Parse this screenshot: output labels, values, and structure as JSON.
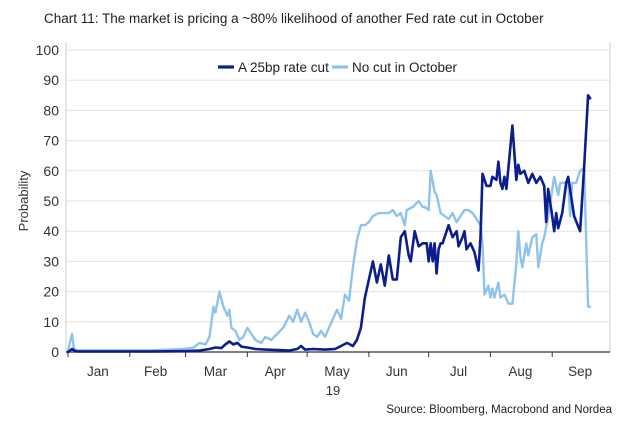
{
  "chart_data": {
    "type": "line",
    "title": "Chart 11: The market is pricing a ~80% likelihood of another Fed rate cut in October",
    "xlabel": "",
    "ylabel": "Probability",
    "source": "Source: Bloomberg, Macrobond and Nordea",
    "year_label": "19",
    "ylim": [
      0,
      100
    ],
    "yticks": [
      0,
      10,
      20,
      30,
      40,
      50,
      60,
      70,
      80,
      90,
      100
    ],
    "x_range": [
      "2018-12-31",
      "2019-09-30"
    ],
    "month_labels": [
      {
        "label": "Jan",
        "date": "2019-01-16"
      },
      {
        "label": "Feb",
        "date": "2019-02-14"
      },
      {
        "label": "Mar",
        "date": "2019-03-16"
      },
      {
        "label": "Apr",
        "date": "2019-04-15"
      },
      {
        "label": "May",
        "date": "2019-05-16"
      },
      {
        "label": "Jun",
        "date": "2019-06-15"
      },
      {
        "label": "Jul",
        "date": "2019-07-16"
      },
      {
        "label": "Aug",
        "date": "2019-08-16"
      },
      {
        "label": "Sep",
        "date": "2019-09-15"
      }
    ],
    "month_ticks": [
      "2019-01-01",
      "2019-02-01",
      "2019-03-01",
      "2019-04-01",
      "2019-05-01",
      "2019-06-01",
      "2019-07-01",
      "2019-08-01",
      "2019-09-01"
    ],
    "legend_position": "top-center",
    "grid": true,
    "series": [
      {
        "name": "A 25bp rate cut",
        "color": "#0b1e8c",
        "points": [
          [
            "2019-01-01",
            0
          ],
          [
            "2019-01-03",
            1
          ],
          [
            "2019-01-05",
            0.2
          ],
          [
            "2019-01-15",
            0.2
          ],
          [
            "2019-02-01",
            0.2
          ],
          [
            "2019-02-15",
            0.2
          ],
          [
            "2019-03-01",
            0.3
          ],
          [
            "2019-03-08",
            0.5
          ],
          [
            "2019-03-13",
            1
          ],
          [
            "2019-03-16",
            1.5
          ],
          [
            "2019-03-19",
            1.3
          ],
          [
            "2019-03-21",
            2.5
          ],
          [
            "2019-03-23",
            3.5
          ],
          [
            "2019-03-25",
            2.5
          ],
          [
            "2019-03-27",
            3
          ],
          [
            "2019-03-29",
            1.8
          ],
          [
            "2019-04-01",
            1.5
          ],
          [
            "2019-04-05",
            1
          ],
          [
            "2019-04-10",
            0.8
          ],
          [
            "2019-04-18",
            0.6
          ],
          [
            "2019-04-22",
            0.5
          ],
          [
            "2019-04-26",
            1
          ],
          [
            "2019-04-28",
            2
          ],
          [
            "2019-04-30",
            0.8
          ],
          [
            "2019-05-04",
            1
          ],
          [
            "2019-05-10",
            0.8
          ],
          [
            "2019-05-15",
            1
          ],
          [
            "2019-05-18",
            2
          ],
          [
            "2019-05-21",
            3
          ],
          [
            "2019-05-24",
            2
          ],
          [
            "2019-05-26",
            4
          ],
          [
            "2019-05-28",
            8
          ],
          [
            "2019-05-30",
            18
          ],
          [
            "2019-06-01",
            24
          ],
          [
            "2019-06-03",
            30
          ],
          [
            "2019-06-05",
            23
          ],
          [
            "2019-06-07",
            29
          ],
          [
            "2019-06-09",
            22
          ],
          [
            "2019-06-11",
            32
          ],
          [
            "2019-06-13",
            24
          ],
          [
            "2019-06-15",
            24
          ],
          [
            "2019-06-17",
            38
          ],
          [
            "2019-06-19",
            40
          ],
          [
            "2019-06-21",
            32
          ],
          [
            "2019-06-22",
            30
          ],
          [
            "2019-06-24",
            40
          ],
          [
            "2019-06-26",
            35
          ],
          [
            "2019-06-28",
            36
          ],
          [
            "2019-06-30",
            36
          ],
          [
            "2019-07-01",
            30
          ],
          [
            "2019-07-02",
            36
          ],
          [
            "2019-07-03",
            30
          ],
          [
            "2019-07-04",
            36
          ],
          [
            "2019-07-05",
            26
          ],
          [
            "2019-07-06",
            34
          ],
          [
            "2019-07-07",
            36
          ],
          [
            "2019-07-08",
            36
          ],
          [
            "2019-07-10",
            40
          ],
          [
            "2019-07-11",
            42
          ],
          [
            "2019-07-13",
            38
          ],
          [
            "2019-07-15",
            40
          ],
          [
            "2019-07-16",
            35
          ],
          [
            "2019-07-18",
            38
          ],
          [
            "2019-07-19",
            40
          ],
          [
            "2019-07-20",
            34
          ],
          [
            "2019-07-22",
            36
          ],
          [
            "2019-07-24",
            33
          ],
          [
            "2019-07-25",
            30
          ],
          [
            "2019-07-26",
            27
          ],
          [
            "2019-07-27",
            38
          ],
          [
            "2019-07-28",
            59
          ],
          [
            "2019-07-30",
            55
          ],
          [
            "2019-08-01",
            55
          ],
          [
            "2019-08-02",
            58
          ],
          [
            "2019-08-04",
            57
          ],
          [
            "2019-08-05",
            63
          ],
          [
            "2019-08-06",
            56
          ],
          [
            "2019-08-07",
            54
          ],
          [
            "2019-08-08",
            58
          ],
          [
            "2019-08-09",
            54
          ],
          [
            "2019-08-12",
            75
          ],
          [
            "2019-08-14",
            57
          ],
          [
            "2019-08-15",
            62
          ],
          [
            "2019-08-16",
            59
          ],
          [
            "2019-08-18",
            60
          ],
          [
            "2019-08-20",
            56
          ],
          [
            "2019-08-22",
            59
          ],
          [
            "2019-08-24",
            56
          ],
          [
            "2019-08-26",
            58
          ],
          [
            "2019-08-28",
            55
          ],
          [
            "2019-08-29",
            43
          ],
          [
            "2019-08-30",
            54
          ],
          [
            "2019-09-01",
            45
          ],
          [
            "2019-09-02",
            40
          ],
          [
            "2019-09-03",
            46
          ],
          [
            "2019-09-04",
            41
          ],
          [
            "2019-09-06",
            46
          ],
          [
            "2019-09-08",
            56
          ],
          [
            "2019-09-09",
            58
          ],
          [
            "2019-09-12",
            45
          ],
          [
            "2019-09-15",
            40
          ],
          [
            "2019-09-17",
            61
          ],
          [
            "2019-09-19",
            85
          ],
          [
            "2019-09-20",
            84
          ]
        ]
      },
      {
        "name": "No cut in October",
        "color": "#8fc3ee",
        "points": [
          [
            "2019-01-01",
            0.5
          ],
          [
            "2019-01-03",
            6
          ],
          [
            "2019-01-04",
            1
          ],
          [
            "2019-01-06",
            0.5
          ],
          [
            "2019-01-20",
            0.5
          ],
          [
            "2019-02-10",
            0.5
          ],
          [
            "2019-02-28",
            1
          ],
          [
            "2019-03-05",
            1.5
          ],
          [
            "2019-03-08",
            3
          ],
          [
            "2019-03-11",
            2.5
          ],
          [
            "2019-03-13",
            5
          ],
          [
            "2019-03-15",
            15
          ],
          [
            "2019-03-16",
            13
          ],
          [
            "2019-03-18",
            20
          ],
          [
            "2019-03-20",
            15
          ],
          [
            "2019-03-22",
            12
          ],
          [
            "2019-03-23",
            14
          ],
          [
            "2019-03-24",
            8
          ],
          [
            "2019-03-26",
            7
          ],
          [
            "2019-03-28",
            4
          ],
          [
            "2019-03-30",
            5
          ],
          [
            "2019-04-01",
            8
          ],
          [
            "2019-04-03",
            6
          ],
          [
            "2019-04-05",
            4
          ],
          [
            "2019-04-08",
            3
          ],
          [
            "2019-04-10",
            5
          ],
          [
            "2019-04-13",
            4
          ],
          [
            "2019-04-16",
            6
          ],
          [
            "2019-04-19",
            8
          ],
          [
            "2019-04-22",
            12
          ],
          [
            "2019-04-24",
            10
          ],
          [
            "2019-04-26",
            14
          ],
          [
            "2019-04-28",
            10
          ],
          [
            "2019-04-30",
            13
          ],
          [
            "2019-05-02",
            10
          ],
          [
            "2019-05-04",
            6
          ],
          [
            "2019-05-06",
            5
          ],
          [
            "2019-05-08",
            7
          ],
          [
            "2019-05-10",
            5
          ],
          [
            "2019-05-12",
            8
          ],
          [
            "2019-05-14",
            11
          ],
          [
            "2019-05-16",
            14
          ],
          [
            "2019-05-18",
            11
          ],
          [
            "2019-05-20",
            19
          ],
          [
            "2019-05-22",
            17
          ],
          [
            "2019-05-24",
            28
          ],
          [
            "2019-05-26",
            37
          ],
          [
            "2019-05-28",
            42
          ],
          [
            "2019-05-30",
            42
          ],
          [
            "2019-06-01",
            43
          ],
          [
            "2019-06-03",
            45
          ],
          [
            "2019-06-06",
            46
          ],
          [
            "2019-06-09",
            46
          ],
          [
            "2019-06-11",
            46
          ],
          [
            "2019-06-13",
            47
          ],
          [
            "2019-06-15",
            45
          ],
          [
            "2019-06-17",
            46
          ],
          [
            "2019-06-19",
            42
          ],
          [
            "2019-06-20",
            47
          ],
          [
            "2019-06-23",
            48
          ],
          [
            "2019-06-26",
            50
          ],
          [
            "2019-06-28",
            48
          ],
          [
            "2019-06-29",
            48
          ],
          [
            "2019-07-01",
            47
          ],
          [
            "2019-07-02",
            60
          ],
          [
            "2019-07-04",
            53
          ],
          [
            "2019-07-05",
            52
          ],
          [
            "2019-07-07",
            46
          ],
          [
            "2019-07-09",
            45
          ],
          [
            "2019-07-11",
            44
          ],
          [
            "2019-07-13",
            46
          ],
          [
            "2019-07-15",
            43
          ],
          [
            "2019-07-17",
            45
          ],
          [
            "2019-07-19",
            47
          ],
          [
            "2019-07-21",
            47
          ],
          [
            "2019-07-23",
            46
          ],
          [
            "2019-07-25",
            44
          ],
          [
            "2019-07-27",
            42
          ],
          [
            "2019-07-28",
            36
          ],
          [
            "2019-07-29",
            19
          ],
          [
            "2019-07-31",
            22
          ],
          [
            "2019-08-01",
            18
          ],
          [
            "2019-08-02",
            21
          ],
          [
            "2019-08-03",
            18
          ],
          [
            "2019-08-05",
            23
          ],
          [
            "2019-08-06",
            18
          ],
          [
            "2019-08-08",
            19
          ],
          [
            "2019-08-10",
            16
          ],
          [
            "2019-08-12",
            16
          ],
          [
            "2019-08-14",
            29
          ],
          [
            "2019-08-15",
            40
          ],
          [
            "2019-08-16",
            32
          ],
          [
            "2019-08-17",
            28
          ],
          [
            "2019-08-19",
            36
          ],
          [
            "2019-08-20",
            32
          ],
          [
            "2019-08-22",
            38
          ],
          [
            "2019-08-24",
            39
          ],
          [
            "2019-08-25",
            28
          ],
          [
            "2019-08-27",
            36
          ],
          [
            "2019-08-28",
            38
          ],
          [
            "2019-08-30",
            45
          ],
          [
            "2019-09-02",
            58
          ],
          [
            "2019-09-04",
            52
          ],
          [
            "2019-09-05",
            56
          ],
          [
            "2019-09-07",
            56
          ],
          [
            "2019-09-09",
            57
          ],
          [
            "2019-09-10",
            45
          ],
          [
            "2019-09-11",
            56
          ],
          [
            "2019-09-13",
            56
          ],
          [
            "2019-09-15",
            60
          ],
          [
            "2019-09-17",
            61
          ],
          [
            "2019-09-19",
            15
          ],
          [
            "2019-09-20",
            15
          ]
        ]
      }
    ]
  }
}
